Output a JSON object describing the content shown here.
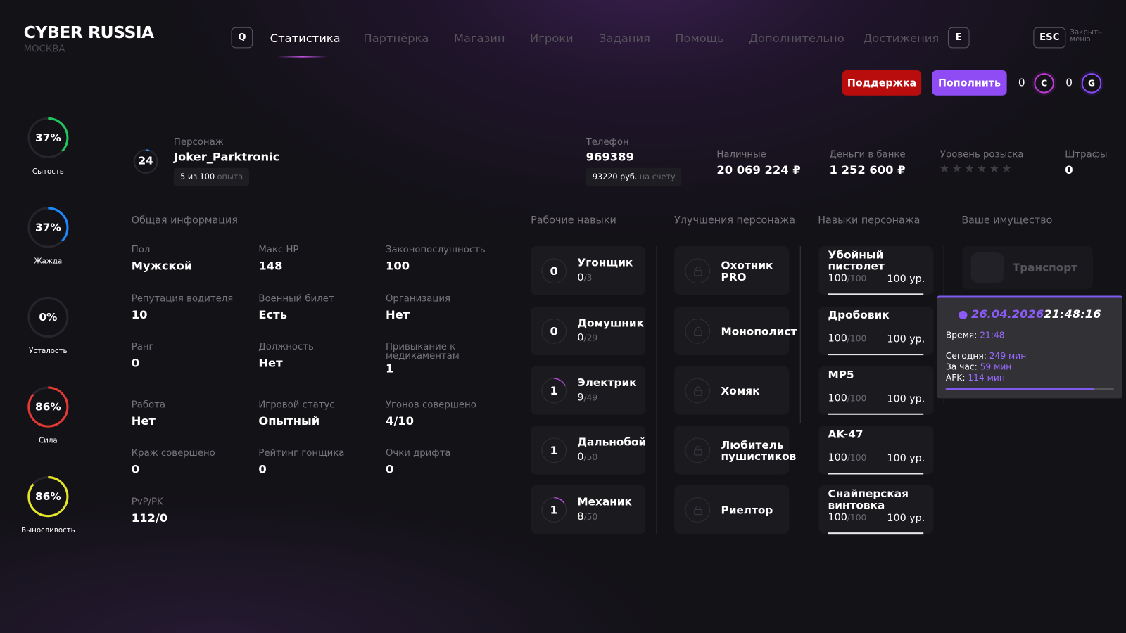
{
  "header": {
    "logo": "CYBER RUSSIA",
    "city": "МОСКВА",
    "key_left": "Q",
    "key_right": "E",
    "esc_key": "ESC",
    "close_label": "Закрыть меню",
    "nav": [
      "Статистика",
      "Партнёрка",
      "Магазин",
      "Игроки",
      "Задания",
      "Помощь",
      "Дополнительно",
      "Достижения"
    ],
    "active_nav": "Статистика",
    "support_label": "Поддержка",
    "topup_label": "Пополнить",
    "coins_c": "0",
    "coin_c_symbol": "C",
    "coins_g": "0",
    "coin_g_symbol": "G",
    "colors": {
      "support": "#b90d0d",
      "topup": "#8f4cf5",
      "accent": "#9a6bff"
    }
  },
  "needs": [
    {
      "label": "Сытость",
      "value": "37%",
      "percent": 37,
      "color": "#22c55e"
    },
    {
      "label": "Жажда",
      "value": "37%",
      "percent": 37,
      "color": "#1e88ff"
    },
    {
      "label": "Усталость",
      "value": "0%",
      "percent": 0,
      "color": "#888888"
    },
    {
      "label": "Сила",
      "value": "86%",
      "percent": 86,
      "color": "#e53935"
    },
    {
      "label": "Выносливость",
      "value": "86%",
      "percent": 86,
      "color": "#e5e52a"
    }
  ],
  "character": {
    "level": "24",
    "level_progress": 5,
    "label": "Персонаж",
    "name": "Joker_Parktronic",
    "exp": "5 из 100",
    "exp_suffix": "опыта",
    "phone_label": "Телефон",
    "phone": "969389",
    "phone_balance": "93220 руб.",
    "phone_balance_suffix": "на счету",
    "cash_label": "Наличные",
    "cash": "20 069 224 ₽",
    "bank_label": "Деньги в банке",
    "bank": "1 252 600 ₽",
    "wanted_label": "Уровень розыска",
    "wanted_stars": 0,
    "wanted_max": 6,
    "fines_label": "Штрафы",
    "fines": "0"
  },
  "sections": {
    "general": "Общая информация",
    "work": "Рабочие навыки",
    "upgrades": "Улучшения персонажа",
    "skills": "Навыки персонажа",
    "property": "Ваше имущество"
  },
  "general": [
    {
      "label": "Пол",
      "value": "Мужской"
    },
    {
      "label": "Макс HP",
      "value": "148"
    },
    {
      "label": "Законопослушность",
      "value": "100"
    },
    {
      "label": "Репутация водителя",
      "value": "10"
    },
    {
      "label": "Военный билет",
      "value": "Есть"
    },
    {
      "label": "Организация",
      "value": "Нет"
    },
    {
      "label": "Ранг",
      "value": "0"
    },
    {
      "label": "Должность",
      "value": "Нет"
    },
    {
      "label": "Привыкание к медикаментам",
      "value": "1"
    },
    {
      "label": "Работа",
      "value": "Нет"
    },
    {
      "label": "Игровой статус",
      "value": "Опытный"
    },
    {
      "label": "Угонов совершено",
      "value": "4/10"
    },
    {
      "label": "Краж совершено",
      "value": "0"
    },
    {
      "label": "Рейтинг гонщика",
      "value": "0"
    },
    {
      "label": "Очки дрифта",
      "value": "0"
    },
    {
      "label": "PvP/PK",
      "value": "112/0"
    }
  ],
  "work_skills": [
    {
      "level": "0",
      "name": "Угонщик",
      "progress": "0",
      "max": "/3"
    },
    {
      "level": "0",
      "name": "Домушник",
      "progress": "0",
      "max": "/29"
    },
    {
      "level": "1",
      "name": "Электрик",
      "progress": "9",
      "max": "/49"
    },
    {
      "level": "1",
      "name": "Дальнобой",
      "progress": "0",
      "max": "/50"
    },
    {
      "level": "1",
      "name": "Механик",
      "progress": "8",
      "max": "/50"
    }
  ],
  "upgrades": [
    {
      "name": "Охотник PRO"
    },
    {
      "name": "Монополист"
    },
    {
      "name": "Хомяк"
    },
    {
      "name": "Любитель пушистиков"
    },
    {
      "name": "Риелтор"
    }
  ],
  "weapon_skills": [
    {
      "name": "Убойный пистолет",
      "level": "100 ур.",
      "progress": "100",
      "max": "/100"
    },
    {
      "name": "Дробовик",
      "level": "100 ур.",
      "progress": "100",
      "max": "/100"
    },
    {
      "name": "MP5",
      "level": "100 ур.",
      "progress": "100",
      "max": "/100"
    },
    {
      "name": "AK-47",
      "level": "100 ур.",
      "progress": "100",
      "max": "/100"
    },
    {
      "name": "Снайперская винтовка",
      "level": "100 ур.",
      "progress": "100",
      "max": "/100"
    }
  ],
  "property": {
    "transport": "Транспорт"
  },
  "tooltip": {
    "date": "26.04.2026",
    "time": "21:48:16",
    "time_label": "Время:",
    "time_value": "21:48",
    "today_label": "Сегодня:",
    "today_value": "249 мин",
    "hour_label": "За час:",
    "hour_value": "59 мин",
    "afk_label": "AFK:",
    "afk_value": "114 мин",
    "progress": 88
  }
}
